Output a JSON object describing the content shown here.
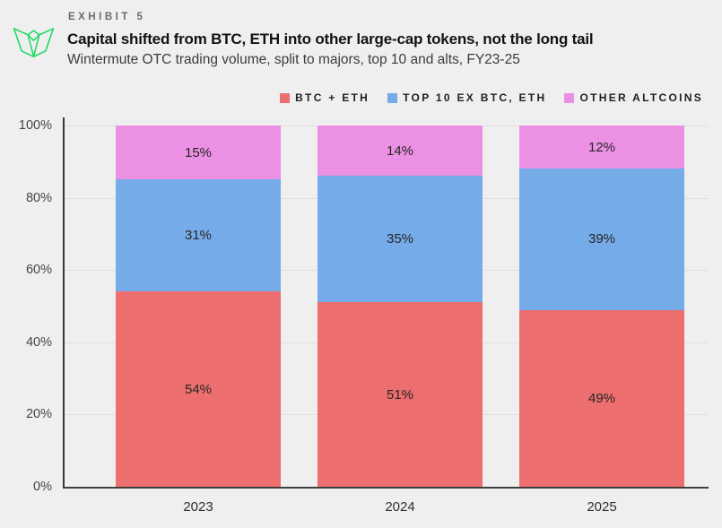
{
  "header": {
    "exhibit_label": "EXHIBIT 5",
    "title": "Capital shifted from BTC, ETH into other large-cap tokens, not the long tail",
    "subtitle": "Wintermute OTC trading volume, split to majors, top 10 and alts, FY23-25"
  },
  "icons": {
    "logo": "wintermute-logo-icon"
  },
  "colors": {
    "background": "#efefef",
    "logo_green": "#1edb63",
    "btc_eth": "#ed6e6e",
    "top10_ex_btc_eth": "#76abea",
    "other_altcoins": "#eb90e2",
    "axis": "#3f3f3f",
    "gridline": "#dedede"
  },
  "chart_data": {
    "type": "bar",
    "stacked": true,
    "title": "Capital shifted from BTC, ETH into other large-cap tokens, not the long tail",
    "subtitle": "Wintermute OTC trading volume, split to majors, top 10 and alts, FY23-25",
    "categories": [
      "2023",
      "2024",
      "2025"
    ],
    "series": [
      {
        "name": "BTC + ETH",
        "color": "#ed6e6e",
        "values": [
          54,
          51,
          49
        ]
      },
      {
        "name": "TOP 10 EX BTC, ETH",
        "color": "#76abea",
        "values": [
          31,
          35,
          39
        ]
      },
      {
        "name": "OTHER ALTCOINS",
        "color": "#eb90e2",
        "values": [
          15,
          14,
          12
        ]
      }
    ],
    "unit": "%",
    "ylim": [
      0,
      100
    ],
    "y_ticks": [
      "100%",
      "80%",
      "60%",
      "40%",
      "20%",
      "0%"
    ],
    "grid": true,
    "legend_position": "top-right",
    "xlabel": "",
    "ylabel": ""
  }
}
